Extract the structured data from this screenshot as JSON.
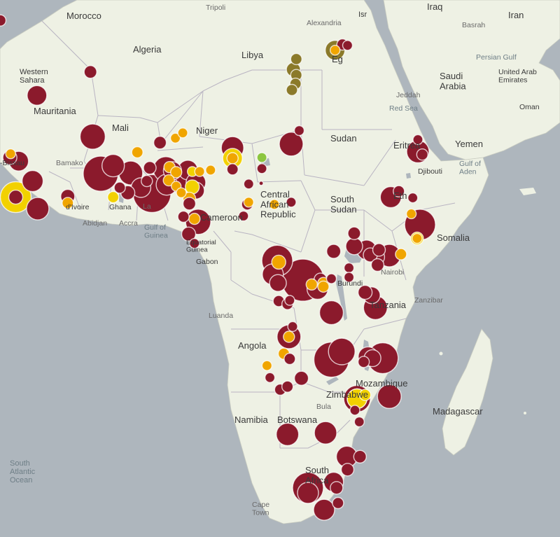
{
  "colors": {
    "high": "#8b1a2c",
    "medium": "#f0a500",
    "low": "#f2d100",
    "lowest": "#8cc63f",
    "egypt": "#8b7a2a",
    "land": "#eef1e4",
    "ocean": "#aeb6bd"
  },
  "labels": {
    "countries": {
      "morocco": "Morocco",
      "algeria": "Algeria",
      "libya": "Libya",
      "egypt": "Eg",
      "western_sahara": "Western\nSahara",
      "mauritania": "Mauritania",
      "mali": "Mali",
      "niger": "Niger",
      "chad": "",
      "sudan": "Sudan",
      "eritrea": "Eritrea",
      "yemen": "Yemen",
      "saudi_arabia": "Saudi\nArabia",
      "uae": "United Arab\nEmirates",
      "oman": "Oman",
      "iraq": "Iraq",
      "iran": "Iran",
      "israel": "Isr",
      "djibouti": "Djibouti",
      "ethiopia": "Eth",
      "south_sudan": "South\nSudan",
      "car": "Central\nAfrican\nRepublic",
      "cameroon": "Cameroon",
      "ghana": "Ghana",
      "cote_divoire": "d'Ivoire",
      "guinea_bissau": "-Bissau",
      "gabon": "Gabon",
      "equatorial_guinea": "Equatorial\nGuinea",
      "somalia": "Somalia",
      "tanzania": "Tanzania",
      "burundi": "Burundi",
      "angola": "Angola",
      "mozambique": "Mozambique",
      "zimbabwe": "Zimbabwe",
      "namibia": "Namibia",
      "botswana": "Botswana",
      "south_africa": "South\nAfrica",
      "madagascar": "Madagascar"
    },
    "cities": {
      "tripoli": "Tripoli",
      "alexandria": "Alexandria",
      "basrah": "Basrah",
      "bamako": "Bamako",
      "abidjan": "Abidjan",
      "accra": "Accra",
      "luanda": "Luanda",
      "nairobi": "Nairobi",
      "zanzibar": "Zanzibar",
      "jeddah": "Jeddah",
      "bulawayo": "Bula",
      "cape_town": "Cape\nTown",
      "lagos": "La"
    },
    "water": {
      "red_sea": "Red Sea",
      "persian_gulf": "Persian Gulf",
      "gulf_of_guinea": "Gulf of\nGuinea",
      "gulf_of_aden": "Gulf of\nAden",
      "south_atlantic": "South\nAtlantic\nOcean"
    }
  },
  "markers": [
    {
      "lon": -17.4,
      "lat": 31.2,
      "r": 8,
      "level": "high"
    },
    {
      "lon": -12.4,
      "lat": 21.9,
      "r": 14,
      "level": "high"
    },
    {
      "lon": -5.1,
      "lat": 24.9,
      "r": 9,
      "level": "high"
    },
    {
      "lon": -4.8,
      "lat": 16.5,
      "r": 18,
      "level": "high"
    },
    {
      "lon": -14.9,
      "lat": 13.2,
      "r": 14,
      "level": "high"
    },
    {
      "lon": -16.1,
      "lat": 13.7,
      "r": 10,
      "level": "high"
    },
    {
      "lon": -16.0,
      "lat": 14.2,
      "r": 7,
      "level": "medium"
    },
    {
      "lon": -13.0,
      "lat": 10.5,
      "r": 15,
      "level": "high"
    },
    {
      "lon": -15.3,
      "lat": 8.3,
      "r": 22,
      "level": "low"
    },
    {
      "lon": -15.3,
      "lat": 8.3,
      "r": 10,
      "level": "high"
    },
    {
      "lon": -12.3,
      "lat": 6.7,
      "r": 16,
      "level": "high"
    },
    {
      "lon": -8.2,
      "lat": 8.4,
      "r": 10,
      "level": "high"
    },
    {
      "lon": -8.2,
      "lat": 7.5,
      "r": 8,
      "level": "medium"
    },
    {
      "lon": -3.7,
      "lat": 11.5,
      "r": 25,
      "level": "high"
    },
    {
      "lon": -2.0,
      "lat": 12.6,
      "r": 16,
      "level": "high"
    },
    {
      "lon": 0.4,
      "lat": 11.6,
      "r": 17,
      "level": "high"
    },
    {
      "lon": 1.3,
      "lat": 14.4,
      "r": 8,
      "level": "medium"
    },
    {
      "lon": -1.1,
      "lat": 9.6,
      "r": 8,
      "level": "high"
    },
    {
      "lon": -2.0,
      "lat": 8.3,
      "r": 8,
      "level": "low"
    },
    {
      "lon": 0.0,
      "lat": 8.9,
      "r": 10,
      "level": "high"
    },
    {
      "lon": 1.8,
      "lat": 9.6,
      "r": 14,
      "level": "high"
    },
    {
      "lon": 3.3,
      "lat": 8.8,
      "r": 27,
      "level": "high"
    },
    {
      "lon": 5.3,
      "lat": 10.0,
      "r": 15,
      "level": "high"
    },
    {
      "lon": 5.2,
      "lat": 12.1,
      "r": 18,
      "level": "high"
    },
    {
      "lon": 6.1,
      "lat": 11.9,
      "r": 13,
      "level": "high"
    },
    {
      "lon": 6.8,
      "lat": 10.5,
      "r": 16,
      "level": "high"
    },
    {
      "lon": 8.2,
      "lat": 12.0,
      "r": 14,
      "level": "high"
    },
    {
      "lon": 9.3,
      "lat": 10.3,
      "r": 14,
      "level": "high"
    },
    {
      "lon": 9.3,
      "lat": 9.2,
      "r": 12,
      "level": "high"
    },
    {
      "lon": 3.0,
      "lat": 12.3,
      "r": 9,
      "level": "high"
    },
    {
      "lon": 2.6,
      "lat": 10.5,
      "r": 8,
      "level": "high"
    },
    {
      "lon": 5.7,
      "lat": 12.4,
      "r": 8,
      "level": "medium"
    },
    {
      "lon": 6.6,
      "lat": 11.7,
      "r": 8,
      "level": "medium"
    },
    {
      "lon": 5.6,
      "lat": 10.6,
      "r": 8,
      "level": "medium"
    },
    {
      "lon": 6.6,
      "lat": 9.8,
      "r": 7,
      "level": "medium"
    },
    {
      "lon": 8.8,
      "lat": 9.7,
      "r": 10,
      "level": "low"
    },
    {
      "lon": 8.4,
      "lat": 8.1,
      "r": 9,
      "level": "medium"
    },
    {
      "lon": 8.8,
      "lat": 11.8,
      "r": 7,
      "level": "low"
    },
    {
      "lon": 9.8,
      "lat": 11.8,
      "r": 7,
      "level": "medium"
    },
    {
      "lon": 7.3,
      "lat": 8.9,
      "r": 7,
      "level": "medium"
    },
    {
      "lon": 8.4,
      "lat": 7.4,
      "r": 9,
      "level": "high"
    },
    {
      "lon": 4.4,
      "lat": 15.7,
      "r": 9,
      "level": "high"
    },
    {
      "lon": 6.5,
      "lat": 16.3,
      "r": 7,
      "level": "medium"
    },
    {
      "lon": 7.5,
      "lat": 17.0,
      "r": 7,
      "level": "medium"
    },
    {
      "lon": 11.3,
      "lat": 12.0,
      "r": 7,
      "level": "medium"
    },
    {
      "lon": 9.6,
      "lat": 4.9,
      "r": 18,
      "level": "high"
    },
    {
      "lon": 9.1,
      "lat": 5.3,
      "r": 8,
      "level": "medium"
    },
    {
      "lon": 7.6,
      "lat": 5.6,
      "r": 8,
      "level": "high"
    },
    {
      "lon": 8.3,
      "lat": 3.2,
      "r": 10,
      "level": "high"
    },
    {
      "lon": 9.1,
      "lat": 1.9,
      "r": 7,
      "level": "high"
    },
    {
      "lon": 14.3,
      "lat": 15.0,
      "r": 16,
      "level": "high"
    },
    {
      "lon": 14.3,
      "lat": 13.6,
      "r": 14,
      "level": "low"
    },
    {
      "lon": 14.3,
      "lat": 13.6,
      "r": 8,
      "level": "medium"
    },
    {
      "lon": 14.3,
      "lat": 12.1,
      "r": 8,
      "level": "high"
    },
    {
      "lon": 18.3,
      "lat": 13.7,
      "r": 7,
      "level": "lowest"
    },
    {
      "lon": 18.3,
      "lat": 12.2,
      "r": 7,
      "level": "high"
    },
    {
      "lon": 16.5,
      "lat": 10.1,
      "r": 7,
      "level": "high"
    },
    {
      "lon": 18.2,
      "lat": 10.2,
      "r": 3,
      "level": "high"
    },
    {
      "lon": 16.5,
      "lat": 7.6,
      "r": 7,
      "level": "medium"
    },
    {
      "lon": 16.3,
      "lat": 7.3,
      "r": 8,
      "level": "high"
    },
    {
      "lon": 15.8,
      "lat": 5.7,
      "r": 7,
      "level": "high"
    },
    {
      "lon": 20.0,
      "lat": 7.3,
      "r": 7,
      "level": "medium"
    },
    {
      "lon": 22.3,
      "lat": 7.6,
      "r": 7,
      "level": "high"
    },
    {
      "lon": 22.3,
      "lat": 15.5,
      "r": 17,
      "level": "high"
    },
    {
      "lon": 23.4,
      "lat": 17.3,
      "r": 7,
      "level": "high"
    },
    {
      "lon": 28.3,
      "lat": 27.6,
      "r": 14,
      "level": "egypt"
    },
    {
      "lon": 28.3,
      "lat": 27.6,
      "r": 7,
      "level": "medium"
    },
    {
      "lon": 29.3,
      "lat": 28.3,
      "r": 8,
      "level": "high"
    },
    {
      "lon": 30.0,
      "lat": 28.2,
      "r": 7,
      "level": "high"
    },
    {
      "lon": 22.6,
      "lat": 25.2,
      "r": 10,
      "level": "egypt"
    },
    {
      "lon": 23.0,
      "lat": 26.5,
      "r": 8,
      "level": "egypt"
    },
    {
      "lon": 23.0,
      "lat": 24.5,
      "r": 8,
      "level": "egypt"
    },
    {
      "lon": 22.9,
      "lat": 23.4,
      "r": 8,
      "level": "egypt"
    },
    {
      "lon": 22.4,
      "lat": 22.6,
      "r": 8,
      "level": "egypt"
    },
    {
      "lon": 39.6,
      "lat": 16.1,
      "r": 7,
      "level": "high"
    },
    {
      "lon": 39.6,
      "lat": 14.5,
      "r": 16,
      "level": "high"
    },
    {
      "lon": 35.9,
      "lat": 8.3,
      "r": 15,
      "level": "high"
    },
    {
      "lon": 37.0,
      "lat": 9.1,
      "r": 8,
      "level": "high"
    },
    {
      "lon": 38.9,
      "lat": 8.2,
      "r": 7,
      "level": "high"
    },
    {
      "lon": 38.7,
      "lat": 6.0,
      "r": 7,
      "level": "medium"
    },
    {
      "lon": 39.9,
      "lat": 4.5,
      "r": 22,
      "level": "high"
    },
    {
      "lon": 39.5,
      "lat": 2.6,
      "r": 9,
      "level": "low"
    },
    {
      "lon": 39.5,
      "lat": 2.6,
      "r": 7,
      "level": "medium"
    },
    {
      "lon": 30.9,
      "lat": 3.3,
      "r": 9,
      "level": "high"
    },
    {
      "lon": 30.9,
      "lat": 1.5,
      "r": 12,
      "level": "high"
    },
    {
      "lon": 32.6,
      "lat": 1.0,
      "r": 14,
      "level": "high"
    },
    {
      "lon": 33.1,
      "lat": 0.3,
      "r": 10,
      "level": "high"
    },
    {
      "lon": 34.3,
      "lat": 1.0,
      "r": 9,
      "level": "high"
    },
    {
      "lon": 34.0,
      "lat": 0.0,
      "r": 11,
      "level": "high"
    },
    {
      "lon": 35.7,
      "lat": 0.2,
      "r": 16,
      "level": "high"
    },
    {
      "lon": 37.3,
      "lat": 0.4,
      "r": 8,
      "level": "medium"
    },
    {
      "lon": 34.1,
      "lat": -1.1,
      "r": 9,
      "level": "high"
    },
    {
      "lon": 28.1,
      "lat": 0.8,
      "r": 10,
      "level": "high"
    },
    {
      "lon": 30.2,
      "lat": -1.5,
      "r": 7,
      "level": "high"
    },
    {
      "lon": 30.2,
      "lat": -2.8,
      "r": 7,
      "level": "high"
    },
    {
      "lon": 20.4,
      "lat": -0.5,
      "r": 22,
      "level": "high"
    },
    {
      "lon": 20.6,
      "lat": -0.7,
      "r": 10,
      "level": "medium"
    },
    {
      "lon": 19.8,
      "lat": -2.4,
      "r": 15,
      "level": "high"
    },
    {
      "lon": 20.5,
      "lat": -3.6,
      "r": 12,
      "level": "high"
    },
    {
      "lon": 23.9,
      "lat": -3.2,
      "r": 30,
      "level": "high"
    },
    {
      "lon": 25.1,
      "lat": -3.8,
      "r": 8,
      "level": "medium"
    },
    {
      "lon": 26.3,
      "lat": -3.1,
      "r": 9,
      "level": "high"
    },
    {
      "lon": 26.7,
      "lat": -3.6,
      "r": 8,
      "level": "medium"
    },
    {
      "lon": 26.7,
      "lat": -4.1,
      "r": 8,
      "level": "medium"
    },
    {
      "lon": 25.9,
      "lat": -4.4,
      "r": 15,
      "level": "high"
    },
    {
      "lon": 27.8,
      "lat": -3.0,
      "r": 7,
      "level": "high"
    },
    {
      "lon": 20.6,
      "lat": -6.1,
      "r": 8,
      "level": "high"
    },
    {
      "lon": 21.8,
      "lat": -6.5,
      "r": 8,
      "level": "high"
    },
    {
      "lon": 22.1,
      "lat": -6.0,
      "r": 7,
      "level": "high"
    },
    {
      "lon": 27.8,
      "lat": -7.7,
      "r": 17,
      "level": "high"
    },
    {
      "lon": 32.4,
      "lat": -4.9,
      "r": 10,
      "level": "high"
    },
    {
      "lon": 33.3,
      "lat": -5.3,
      "r": 12,
      "level": "high"
    },
    {
      "lon": 33.8,
      "lat": -7.0,
      "r": 17,
      "level": "high"
    },
    {
      "lon": 22.0,
      "lat": -11.0,
      "r": 17,
      "level": "high"
    },
    {
      "lon": 22.0,
      "lat": -11.0,
      "r": 8,
      "level": "medium"
    },
    {
      "lon": 22.5,
      "lat": -9.6,
      "r": 7,
      "level": "high"
    },
    {
      "lon": 21.3,
      "lat": -13.3,
      "r": 8,
      "level": "medium"
    },
    {
      "lon": 19.0,
      "lat": -14.9,
      "r": 7,
      "level": "medium"
    },
    {
      "lon": 22.1,
      "lat": -14.0,
      "r": 8,
      "level": "high"
    },
    {
      "lon": 19.4,
      "lat": -16.5,
      "r": 7,
      "level": "high"
    },
    {
      "lon": 20.8,
      "lat": -18.1,
      "r": 8,
      "level": "high"
    },
    {
      "lon": 21.8,
      "lat": -17.7,
      "r": 8,
      "level": "high"
    },
    {
      "lon": 23.7,
      "lat": -16.6,
      "r": 10,
      "level": "high"
    },
    {
      "lon": 27.8,
      "lat": -14.1,
      "r": 25,
      "level": "high"
    },
    {
      "lon": 29.2,
      "lat": -13.0,
      "r": 19,
      "level": "high"
    },
    {
      "lon": 32.2,
      "lat": -14.4,
      "r": 8,
      "level": "high"
    },
    {
      "lon": 32.8,
      "lat": -13.7,
      "r": 14,
      "level": "high"
    },
    {
      "lon": 33.4,
      "lat": -13.9,
      "r": 12,
      "level": "high"
    },
    {
      "lon": 34.8,
      "lat": -13.9,
      "r": 22,
      "level": "high"
    },
    {
      "lon": 35.7,
      "lat": -19.0,
      "r": 17,
      "level": "high"
    },
    {
      "lon": 31.3,
      "lat": -19.3,
      "r": 14,
      "level": "low"
    },
    {
      "lon": 31.3,
      "lat": -19.3,
      "r": 19,
      "level": "high"
    },
    {
      "lon": 31.3,
      "lat": -19.3,
      "r": 14,
      "level": "low"
    },
    {
      "lon": 32.4,
      "lat": -18.8,
      "r": 8,
      "level": "low"
    },
    {
      "lon": 31.0,
      "lat": -20.8,
      "r": 7,
      "level": "high"
    },
    {
      "lon": 31.6,
      "lat": -22.3,
      "r": 7,
      "level": "high"
    },
    {
      "lon": 21.8,
      "lat": -23.9,
      "r": 16,
      "level": "high"
    },
    {
      "lon": 27.0,
      "lat": -23.7,
      "r": 16,
      "level": "high"
    },
    {
      "lon": 29.9,
      "lat": -26.7,
      "r": 15,
      "level": "high"
    },
    {
      "lon": 31.7,
      "lat": -26.7,
      "r": 9,
      "level": "high"
    },
    {
      "lon": 30.0,
      "lat": -28.3,
      "r": 9,
      "level": "high"
    },
    {
      "lon": 28.1,
      "lat": -29.8,
      "r": 14,
      "level": "high"
    },
    {
      "lon": 28.5,
      "lat": -30.5,
      "r": 9,
      "level": "high"
    },
    {
      "lon": 24.6,
      "lat": -30.5,
      "r": 22,
      "level": "high"
    },
    {
      "lon": 24.6,
      "lat": -31.1,
      "r": 15,
      "level": "high"
    },
    {
      "lon": 26.8,
      "lat": -33.1,
      "r": 15,
      "level": "high"
    },
    {
      "lon": 28.7,
      "lat": -32.3,
      "r": 8,
      "level": "high"
    },
    {
      "lon": 40.2,
      "lat": 14.1,
      "r": 8,
      "level": "high"
    }
  ]
}
